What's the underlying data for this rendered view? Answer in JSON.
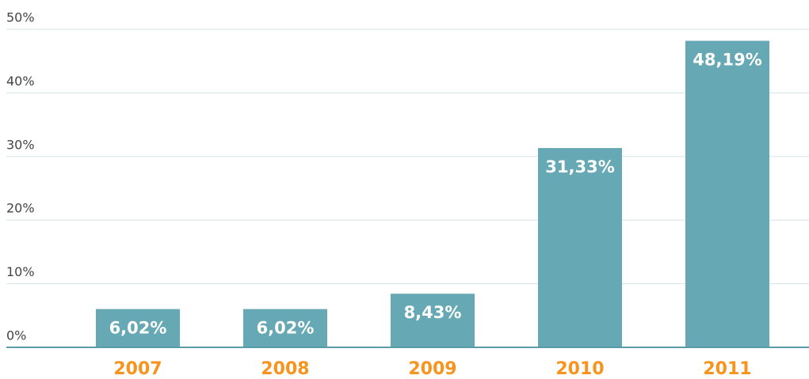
{
  "chart_data": {
    "type": "bar",
    "categories": [
      "2007",
      "2008",
      "2009",
      "2010",
      "2011"
    ],
    "values": [
      6.02,
      6.02,
      8.43,
      31.33,
      48.19
    ],
    "value_labels": [
      "6,02%",
      "6,02%",
      "8,43%",
      "31,33%",
      "48,19%"
    ],
    "color": "#66a8b4",
    "ylim": [
      0,
      50
    ],
    "yticks": [
      {
        "value": 0,
        "label": "0%"
      },
      {
        "value": 10,
        "label": "10%"
      },
      {
        "value": 20,
        "label": "20%"
      },
      {
        "value": 30,
        "label": "30%"
      },
      {
        "value": 40,
        "label": "40%"
      },
      {
        "value": 50,
        "label": "50%"
      }
    ],
    "grid": true
  }
}
